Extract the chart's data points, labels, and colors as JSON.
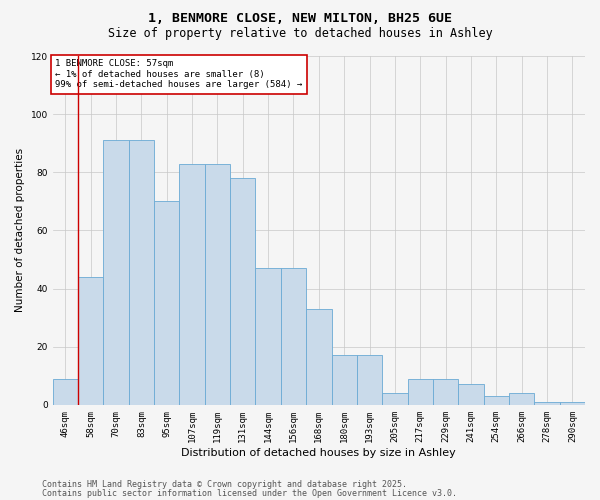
{
  "title1": "1, BENMORE CLOSE, NEW MILTON, BH25 6UE",
  "title2": "Size of property relative to detached houses in Ashley",
  "xlabel": "Distribution of detached houses by size in Ashley",
  "ylabel": "Number of detached properties",
  "categories": [
    "46sqm",
    "58sqm",
    "70sqm",
    "83sqm",
    "95sqm",
    "107sqm",
    "119sqm",
    "131sqm",
    "144sqm",
    "156sqm",
    "168sqm",
    "180sqm",
    "193sqm",
    "205sqm",
    "217sqm",
    "229sqm",
    "241sqm",
    "254sqm",
    "266sqm",
    "278sqm",
    "290sqm"
  ],
  "values": [
    9,
    44,
    91,
    91,
    70,
    83,
    83,
    78,
    47,
    47,
    33,
    17,
    17,
    4,
    9,
    9,
    7,
    3,
    4,
    1,
    1
  ],
  "bar_color": "#c9daea",
  "bar_edge_color": "#6aaad4",
  "ylim": [
    0,
    120
  ],
  "yticks": [
    0,
    20,
    40,
    60,
    80,
    100,
    120
  ],
  "annotation_text": "1 BENMORE CLOSE: 57sqm\n← 1% of detached houses are smaller (8)\n99% of semi-detached houses are larger (584) →",
  "annotation_box_color": "#ffffff",
  "annotation_box_edge": "#cc0000",
  "redline_bin": 1,
  "footnote1": "Contains HM Land Registry data © Crown copyright and database right 2025.",
  "footnote2": "Contains public sector information licensed under the Open Government Licence v3.0.",
  "bg_color": "#f5f5f5",
  "grid_color": "#c8c8c8",
  "title1_fontsize": 9.5,
  "title2_fontsize": 8.5,
  "xlabel_fontsize": 8,
  "ylabel_fontsize": 7.5,
  "tick_fontsize": 6.5,
  "annotation_fontsize": 6.5,
  "footnote_fontsize": 6
}
